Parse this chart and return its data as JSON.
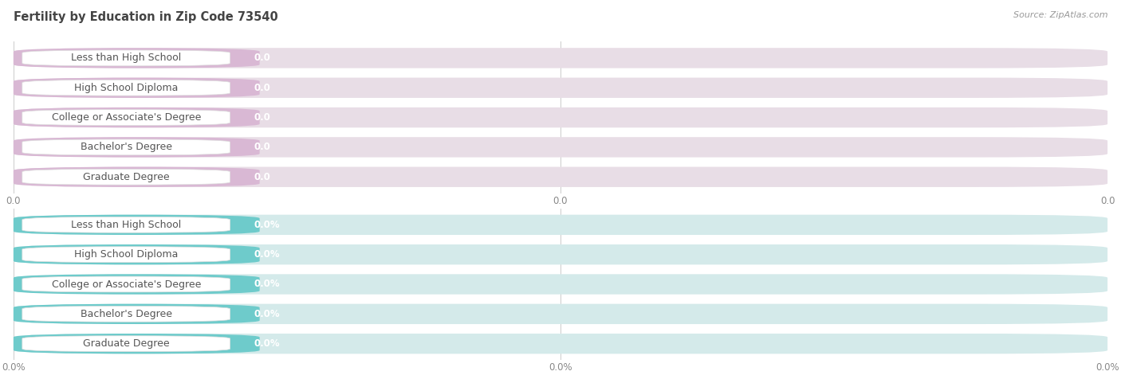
{
  "title": "Fertility by Education in Zip Code 73540",
  "source_text": "Source: ZipAtlas.com",
  "categories": [
    "Less than High School",
    "High School Diploma",
    "College or Associate's Degree",
    "Bachelor's Degree",
    "Graduate Degree"
  ],
  "values_top": [
    0.0,
    0.0,
    0.0,
    0.0,
    0.0
  ],
  "values_bottom": [
    0.0,
    0.0,
    0.0,
    0.0,
    0.0
  ],
  "top_bar_color": "#d9b8d4",
  "top_bar_bg": "#e8dde6",
  "bottom_bar_color": "#6ecbcb",
  "bottom_bar_bg": "#d4eaea",
  "top_value_labels": [
    "0.0",
    "0.0",
    "0.0",
    "0.0",
    "0.0"
  ],
  "bottom_value_labels": [
    "0.0%",
    "0.0%",
    "0.0%",
    "0.0%",
    "0.0%"
  ],
  "top_tick_labels": [
    "0.0",
    "0.0",
    "0.0"
  ],
  "bottom_tick_labels": [
    "0.0%",
    "0.0%",
    "0.0%"
  ],
  "background_color": "#ffffff",
  "chart_bg": "#f0f0f0",
  "title_fontsize": 10.5,
  "bar_label_fontsize": 9,
  "value_fontsize": 8.5,
  "tick_fontsize": 8.5,
  "source_fontsize": 8,
  "title_color": "#444444",
  "label_text_color": "#555555",
  "value_text_color": "#ffffff",
  "tick_color": "#888888"
}
